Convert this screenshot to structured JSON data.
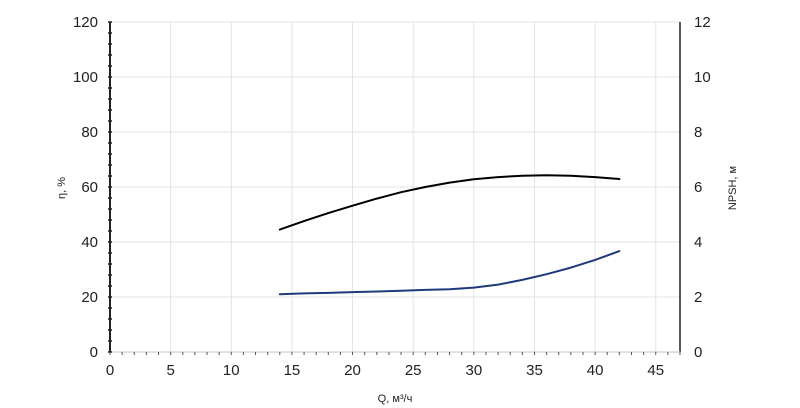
{
  "chart_data": {
    "type": "line",
    "xlabel": "Q, м³/ч",
    "ylabel_left": "η, %",
    "ylabel_right": "NPSH, м",
    "xlim": [
      0,
      47
    ],
    "ylim_left": [
      0,
      120
    ],
    "ylim_right": [
      0,
      12
    ],
    "x_ticks": [
      0,
      5,
      10,
      15,
      20,
      25,
      30,
      35,
      40,
      45
    ],
    "y_ticks_left": [
      0,
      20,
      40,
      60,
      80,
      100,
      120
    ],
    "y_ticks_right": [
      0,
      2,
      4,
      6,
      8,
      10,
      12
    ],
    "grid": true,
    "colors": {
      "efficiency": "#000000",
      "npsh": "#1f3a7a",
      "grid": "#dfe3e8",
      "axis": "#222222"
    },
    "series": [
      {
        "axis": "left",
        "color": "#000000",
        "x": [
          14,
          16,
          18,
          20,
          22,
          24,
          26,
          28,
          30,
          32,
          34,
          36,
          38,
          40,
          42
        ],
        "y": [
          44.5,
          47.6,
          50.5,
          53.2,
          55.8,
          58.1,
          60.0,
          61.6,
          62.8,
          63.6,
          64.1,
          64.3,
          64.1,
          63.6,
          62.9
        ]
      },
      {
        "axis": "right",
        "color": "#1f3a7a",
        "x": [
          14,
          16,
          18,
          20,
          22,
          24,
          26,
          28,
          30,
          32,
          34,
          36,
          38,
          40,
          42
        ],
        "y": [
          2.1,
          2.13,
          2.15,
          2.18,
          2.2,
          2.23,
          2.26,
          2.28,
          2.34,
          2.45,
          2.62,
          2.83,
          3.07,
          3.35,
          3.67
        ]
      }
    ]
  }
}
